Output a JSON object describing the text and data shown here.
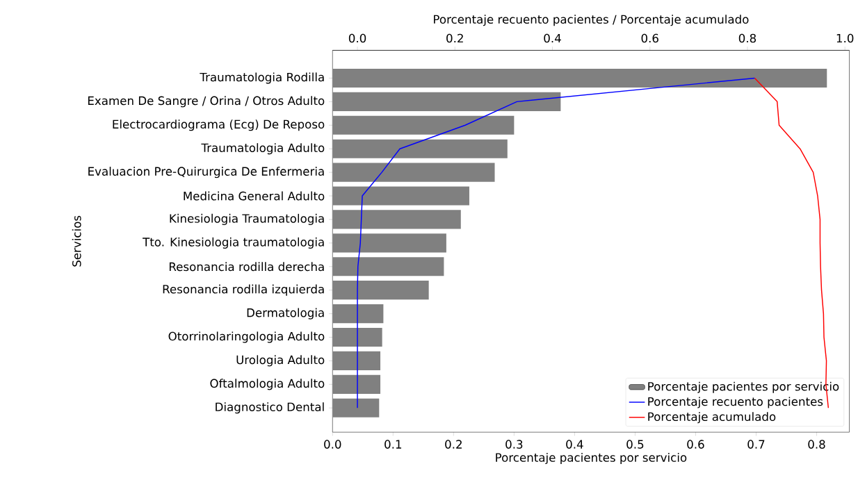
{
  "chart_data": {
    "type": "bar",
    "orientation": "horizontal",
    "categories": [
      "Traumatologia Rodilla",
      "Examen De Sangre / Orina / Otros Adulto",
      "Electrocardiograma (Ecg) De Reposo",
      "Traumatologia Adulto",
      "Evaluacion Pre-Quirurgica De Enfermeria",
      "Medicina General Adulto",
      "Kinesiologia  Traumatologia",
      "Tto. Kinesiologia traumatologia",
      "Resonancia rodilla derecha",
      "Resonancia rodilla izquierda",
      "Dermatologia",
      "Otorrinolaringologia Adulto",
      "Urologia Adulto",
      "Oftalmologia Adulto",
      "Diagnostico Dental"
    ],
    "series": [
      {
        "name": "Porcentaje pacientes por servicio",
        "color": "#808080",
        "values": [
          0.817,
          0.377,
          0.3,
          0.289,
          0.268,
          0.226,
          0.212,
          0.188,
          0.184,
          0.159,
          0.084,
          0.082,
          0.079,
          0.079,
          0.077
        ]
      },
      {
        "name": "Porcentaje recuento pacientes",
        "type": "line",
        "axis": "x2",
        "color": "#0000ff",
        "values": [
          0.815,
          0.327,
          0.221,
          0.087,
          0.05,
          0.01,
          0.008,
          0.006,
          0.001,
          0.0,
          0.0,
          0.0,
          0.0,
          0.0,
          0.0
        ]
      },
      {
        "name": "Porcentaje acumulado",
        "type": "line",
        "axis": "x2",
        "color": "#ff0000",
        "values": [
          0.815,
          0.861,
          0.865,
          0.908,
          0.935,
          0.944,
          0.949,
          0.949,
          0.95,
          0.952,
          0.956,
          0.957,
          0.962,
          0.961,
          0.966
        ]
      }
    ],
    "xlabel": "Porcentaje pacientes por servicio",
    "x2label": "Porcentaje recuento pacientes / Porcentaje acumulado",
    "ylabel": "Servicios",
    "xlim": [
      0,
      0.854
    ],
    "xticks": [
      {
        "value": 0,
        "label": "0.0"
      },
      {
        "value": 0.1,
        "label": "0.1"
      },
      {
        "value": 0.2,
        "label": "0.2"
      },
      {
        "value": 0.3,
        "label": "0.3"
      },
      {
        "value": 0.4,
        "label": "0.4"
      },
      {
        "value": 0.5,
        "label": "0.5"
      },
      {
        "value": 0.6,
        "label": "0.6"
      },
      {
        "value": 0.7,
        "label": "0.7"
      },
      {
        "value": 0.8,
        "label": "0.8"
      }
    ],
    "x2lim": [
      -0.051,
      1.009
    ],
    "x2ticks": [
      {
        "value": 0,
        "label": "0.0"
      },
      {
        "value": 0.2,
        "label": "0.2"
      },
      {
        "value": 0.4,
        "label": "0.4"
      },
      {
        "value": 0.6,
        "label": "0.6"
      },
      {
        "value": 0.8,
        "label": "0.8"
      },
      {
        "value": 1.0,
        "label": "1.0"
      }
    ],
    "legend": "bottom right"
  }
}
